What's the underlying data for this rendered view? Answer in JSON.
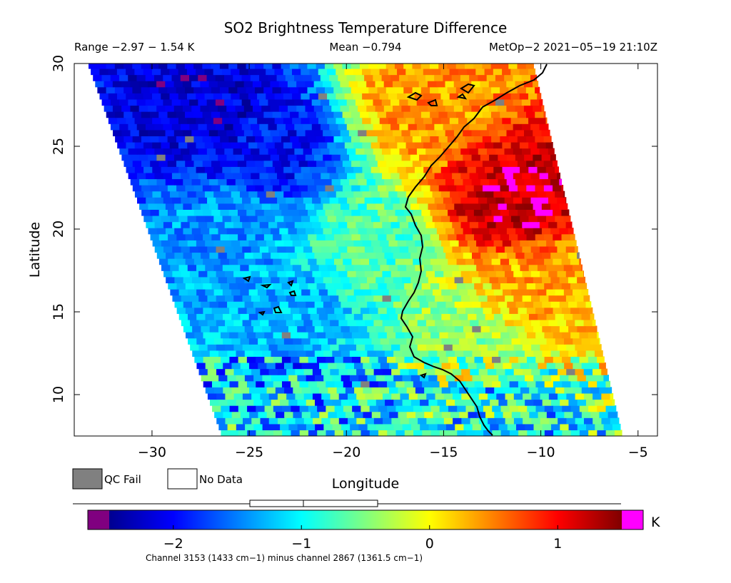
{
  "header": {
    "title": "SO2 Brightness Temperature Difference",
    "range_text": "Range −2.97 − 1.54 K",
    "mean_text": "Mean −0.794",
    "satellite_text": "MetOp−2 2021−05−19 21:10Z"
  },
  "legend": {
    "qc_fail_label": "QC Fail",
    "no_data_label": "No Data",
    "qc_fail_color": "#808080",
    "no_data_color": "#ffffff"
  },
  "colorbar": {
    "unit_label": "K",
    "min": -2.5,
    "max": 1.5,
    "under_color": "#800080",
    "over_color": "#ff00ff",
    "ticks": [
      {
        "value": -2,
        "label": "−2"
      },
      {
        "value": -1,
        "label": "−1"
      },
      {
        "value": 0,
        "label": "0"
      },
      {
        "value": 1,
        "label": "1"
      }
    ],
    "footnote": "Channel 3153 (1433 cm−1) minus channel 2867 (1361.5 cm−1)"
  },
  "chart_data": {
    "type": "heatmap",
    "title": "SO2 Brightness Temperature Difference",
    "xlabel": "Longitude",
    "ylabel": "Latitude",
    "xlim": [
      -34,
      -4
    ],
    "ylim": [
      7.5,
      30
    ],
    "xticks": [
      {
        "value": -30,
        "label": "−30"
      },
      {
        "value": -25,
        "label": "−25"
      },
      {
        "value": -20,
        "label": "−20"
      },
      {
        "value": -15,
        "label": "−15"
      },
      {
        "value": -10,
        "label": "−10"
      },
      {
        "value": -5,
        "label": "−5"
      }
    ],
    "yticks": [
      {
        "value": 10,
        "label": "10"
      },
      {
        "value": 15,
        "label": "15"
      },
      {
        "value": 20,
        "label": "20"
      },
      {
        "value": 25,
        "label": "25"
      },
      {
        "value": 30,
        "label": "30"
      }
    ],
    "value_range": [
      -2.97,
      1.54
    ],
    "mean": -0.794,
    "units": "K",
    "swath_corners_lonlat": [
      [
        -33.3,
        30
      ],
      [
        -10.4,
        30
      ],
      [
        -5.8,
        7.5
      ],
      [
        -26.4,
        7.5
      ]
    ],
    "regions": [
      {
        "lon": -27,
        "lat": 27,
        "value": -2.2
      },
      {
        "lon": -24,
        "lat": 25,
        "value": -2.0
      },
      {
        "lon": -26,
        "lat": 20,
        "value": -1.4
      },
      {
        "lon": -23,
        "lat": 15,
        "value": -1.3
      },
      {
        "lon": -19,
        "lat": 19,
        "value": -0.7
      },
      {
        "lon": -16,
        "lat": 27.5,
        "value": 0.4
      },
      {
        "lon": -11.5,
        "lat": 22,
        "value": 1.3
      },
      {
        "lon": -10,
        "lat": 16,
        "value": 0.3
      },
      {
        "lon": -14,
        "lat": 13,
        "value": -0.4
      },
      {
        "lon": -19,
        "lat": 10,
        "value": -1.1
      },
      {
        "lon": -12,
        "lat": 9,
        "value": -1.0
      }
    ]
  }
}
